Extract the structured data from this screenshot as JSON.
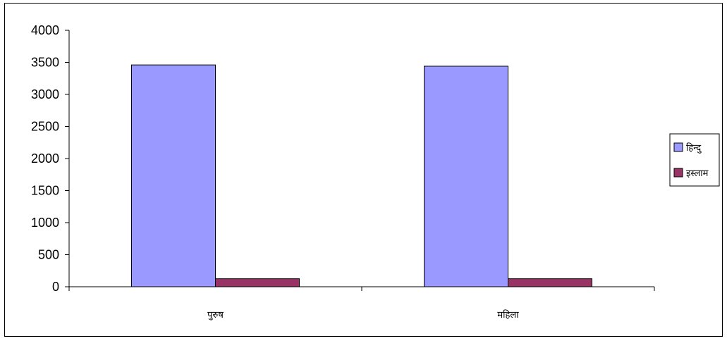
{
  "chart_data": {
    "type": "bar",
    "title": "",
    "xlabel": "",
    "ylabel": "",
    "categories": [
      "पुरुष",
      "महिला"
    ],
    "series": [
      {
        "name": "हिन्दु",
        "values": [
          3460,
          3440
        ],
        "color": "#9999ff"
      },
      {
        "name": "इस्लाम",
        "values": [
          125,
          125
        ],
        "color": "#993366"
      }
    ],
    "ylim": [
      0,
      4000
    ],
    "yticks": [
      0,
      500,
      1000,
      1500,
      2000,
      2500,
      3000,
      3500,
      4000
    ],
    "grid": false,
    "legend": "right"
  }
}
